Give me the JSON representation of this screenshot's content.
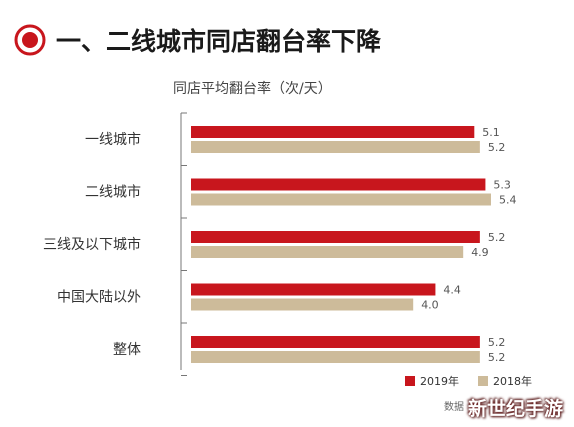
{
  "header": {
    "title": "一、二线城市同店翻台率下降",
    "icon": "target-icon",
    "accent_color": "#c8161d"
  },
  "chart_data": {
    "type": "bar",
    "orientation": "horizontal",
    "title": "一、二线城市同店翻台率下降",
    "subtitle": "同店平均翻台率（次/天）",
    "categories": [
      "一线城市",
      "二线城市",
      "三线及以下城市",
      "中国大陆以外",
      "整体"
    ],
    "series": [
      {
        "name": "2019年",
        "color": "#c8161d",
        "values": [
          5.1,
          5.3,
          5.2,
          4.4,
          5.2
        ],
        "labels": [
          "5.1",
          "5.3",
          "5.2",
          "4.4",
          "5.2"
        ]
      },
      {
        "name": "2018年",
        "color": "#cdbb9a",
        "values": [
          5.2,
          5.4,
          4.9,
          4.0,
          5.2
        ],
        "labels": [
          "5.2",
          "5.4",
          "4.9",
          "4.0",
          "5.2"
        ]
      }
    ],
    "xlim": [
      0,
      5.4
    ],
    "grid": false,
    "legend": "bottom-right"
  },
  "footer": {
    "source": "数据",
    "watermark": "新世纪手游"
  }
}
